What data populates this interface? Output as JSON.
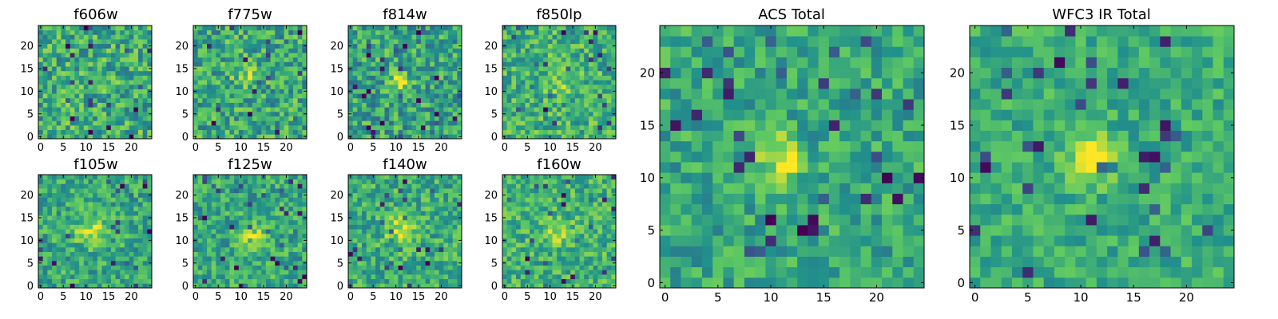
{
  "figure": {
    "background": "#ffffff"
  },
  "colormap": {
    "name": "viridis",
    "stops": [
      "#440154",
      "#3b528b",
      "#21918c",
      "#5ec962",
      "#fde725"
    ]
  },
  "chart_data": [
    {
      "type": "heatmap",
      "title": "f606w",
      "grid_size": 25,
      "xlim": [
        -0.5,
        24.5
      ],
      "ylim": [
        -0.5,
        24.5
      ],
      "xticks": [
        "0",
        "5",
        "10",
        "15",
        "20"
      ],
      "xtick_values": [
        0,
        5,
        10,
        15,
        20
      ],
      "yticks": [
        "0",
        "5",
        "10",
        "15",
        "20"
      ],
      "ytick_values": [
        0,
        5,
        10,
        15,
        20
      ],
      "cmap": "viridis",
      "vmin": 0,
      "vmax": 1,
      "base_level": 0.62,
      "noise": 0.24,
      "peak": {
        "x": 12,
        "y": 12,
        "amplitude": 0.0,
        "sigma": 2.0
      }
    },
    {
      "type": "heatmap",
      "title": "f775w",
      "grid_size": 25,
      "xlim": [
        -0.5,
        24.5
      ],
      "ylim": [
        -0.5,
        24.5
      ],
      "xticks": [
        "0",
        "5",
        "10",
        "15",
        "20"
      ],
      "xtick_values": [
        0,
        5,
        10,
        15,
        20
      ],
      "yticks": [
        "0",
        "5",
        "10",
        "15",
        "20"
      ],
      "ytick_values": [
        0,
        5,
        10,
        15,
        20
      ],
      "cmap": "viridis",
      "vmin": 0,
      "vmax": 1,
      "base_level": 0.6,
      "noise": 0.24,
      "peak": {
        "x": 11,
        "y": 13,
        "amplitude": 0.18,
        "sigma": 2.0
      }
    },
    {
      "type": "heatmap",
      "title": "f814w",
      "grid_size": 25,
      "xlim": [
        -0.5,
        24.5
      ],
      "ylim": [
        -0.5,
        24.5
      ],
      "xticks": [
        "0",
        "5",
        "10",
        "15",
        "20"
      ],
      "xtick_values": [
        0,
        5,
        10,
        15,
        20
      ],
      "yticks": [
        "0",
        "5",
        "10",
        "15",
        "20"
      ],
      "ytick_values": [
        0,
        5,
        10,
        15,
        20
      ],
      "cmap": "viridis",
      "vmin": 0,
      "vmax": 1,
      "base_level": 0.58,
      "noise": 0.24,
      "peak": {
        "x": 11,
        "y": 12,
        "amplitude": 0.45,
        "sigma": 1.6
      }
    },
    {
      "type": "heatmap",
      "title": "f850lp",
      "grid_size": 25,
      "xlim": [
        -0.5,
        24.5
      ],
      "ylim": [
        -0.5,
        24.5
      ],
      "xticks": [
        "0",
        "5",
        "10",
        "15",
        "20"
      ],
      "xtick_values": [
        0,
        5,
        10,
        15,
        20
      ],
      "yticks": [
        "0",
        "5",
        "10",
        "15",
        "20"
      ],
      "ytick_values": [
        0,
        5,
        10,
        15,
        20
      ],
      "cmap": "viridis",
      "vmin": 0,
      "vmax": 1,
      "base_level": 0.64,
      "noise": 0.22,
      "peak": {
        "x": 12,
        "y": 12,
        "amplitude": 0.15,
        "sigma": 2.0
      }
    },
    {
      "type": "heatmap",
      "title": "f105w",
      "grid_size": 25,
      "xlim": [
        -0.5,
        24.5
      ],
      "ylim": [
        -0.5,
        24.5
      ],
      "xticks": [
        "0",
        "5",
        "10",
        "15",
        "20"
      ],
      "xtick_values": [
        0,
        5,
        10,
        15,
        20
      ],
      "yticks": [
        "0",
        "5",
        "10",
        "15",
        "20"
      ],
      "ytick_values": [
        0,
        5,
        10,
        15,
        20
      ],
      "cmap": "viridis",
      "vmin": 0,
      "vmax": 1,
      "base_level": 0.6,
      "noise": 0.2,
      "peak": {
        "x": 11,
        "y": 12,
        "amplitude": 0.3,
        "sigma": 2.2
      }
    },
    {
      "type": "heatmap",
      "title": "f125w",
      "grid_size": 25,
      "xlim": [
        -0.5,
        24.5
      ],
      "ylim": [
        -0.5,
        24.5
      ],
      "xticks": [
        "0",
        "5",
        "10",
        "15",
        "20"
      ],
      "xtick_values": [
        0,
        5,
        10,
        15,
        20
      ],
      "yticks": [
        "0",
        "5",
        "10",
        "15",
        "20"
      ],
      "ytick_values": [
        0,
        5,
        10,
        15,
        20
      ],
      "cmap": "viridis",
      "vmin": 0,
      "vmax": 1,
      "base_level": 0.6,
      "noise": 0.2,
      "peak": {
        "x": 13,
        "y": 10,
        "amplitude": 0.3,
        "sigma": 2.2
      }
    },
    {
      "type": "heatmap",
      "title": "f140w",
      "grid_size": 25,
      "xlim": [
        -0.5,
        24.5
      ],
      "ylim": [
        -0.5,
        24.5
      ],
      "xticks": [
        "0",
        "5",
        "10",
        "15",
        "20"
      ],
      "xtick_values": [
        0,
        5,
        10,
        15,
        20
      ],
      "yticks": [
        "0",
        "5",
        "10",
        "15",
        "20"
      ],
      "ytick_values": [
        0,
        5,
        10,
        15,
        20
      ],
      "cmap": "viridis",
      "vmin": 0,
      "vmax": 1,
      "base_level": 0.62,
      "noise": 0.2,
      "peak": {
        "x": 11,
        "y": 12,
        "amplitude": 0.3,
        "sigma": 2.2
      }
    },
    {
      "type": "heatmap",
      "title": "f160w",
      "grid_size": 25,
      "xlim": [
        -0.5,
        24.5
      ],
      "ylim": [
        -0.5,
        24.5
      ],
      "xticks": [
        "0",
        "5",
        "10",
        "15",
        "20"
      ],
      "xtick_values": [
        0,
        5,
        10,
        15,
        20
      ],
      "yticks": [
        "0",
        "5",
        "10",
        "15",
        "20"
      ],
      "ytick_values": [
        0,
        5,
        10,
        15,
        20
      ],
      "cmap": "viridis",
      "vmin": 0,
      "vmax": 1,
      "base_level": 0.64,
      "noise": 0.2,
      "peak": {
        "x": 12,
        "y": 12,
        "amplitude": 0.2,
        "sigma": 2.2
      }
    },
    {
      "type": "heatmap",
      "title": "ACS Total",
      "grid_size": 25,
      "xlim": [
        -0.5,
        24.5
      ],
      "ylim": [
        -0.5,
        24.5
      ],
      "xticks": [
        "0",
        "5",
        "10",
        "15",
        "20"
      ],
      "xtick_values": [
        0,
        5,
        10,
        15,
        20
      ],
      "yticks": [
        "0",
        "5",
        "10",
        "15",
        "20"
      ],
      "ytick_values": [
        0,
        5,
        10,
        15,
        20
      ],
      "cmap": "viridis",
      "vmin": 0,
      "vmax": 1,
      "base_level": 0.6,
      "noise": 0.18,
      "peak": {
        "x": 11,
        "y": 12,
        "amplitude": 0.42,
        "sigma": 1.4
      }
    },
    {
      "type": "heatmap",
      "title": "WFC3 IR Total",
      "grid_size": 25,
      "xlim": [
        -0.5,
        24.5
      ],
      "ylim": [
        -0.5,
        24.5
      ],
      "xticks": [
        "0",
        "5",
        "10",
        "15",
        "20"
      ],
      "xtick_values": [
        0,
        5,
        10,
        15,
        20
      ],
      "yticks": [
        "0",
        "5",
        "10",
        "15",
        "20"
      ],
      "ytick_values": [
        0,
        5,
        10,
        15,
        20
      ],
      "cmap": "viridis",
      "vmin": 0,
      "vmax": 1,
      "base_level": 0.62,
      "noise": 0.15,
      "peak": {
        "x": 11,
        "y": 12,
        "amplitude": 0.4,
        "sigma": 1.6
      }
    }
  ]
}
